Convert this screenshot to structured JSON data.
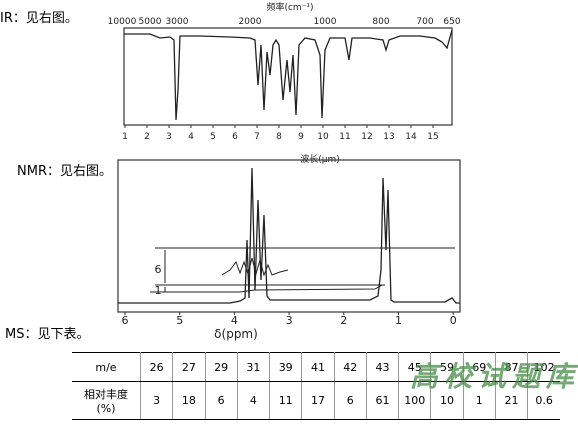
{
  "ir": {
    "label": "IR：见右图。",
    "top_title": "频率(cm⁻¹)",
    "top_ticks": [
      "10000",
      "5000",
      "3000",
      "2000",
      "1000",
      "800",
      "700",
      "650"
    ],
    "bottom_ticks": [
      1,
      2,
      3,
      4,
      5,
      6,
      7,
      8,
      9,
      10,
      11,
      12,
      13,
      14,
      15
    ],
    "bottom_title": "波长(μm)"
  },
  "nmr": {
    "label": "NMR：见右图。",
    "ticks": [
      6,
      5,
      4,
      3,
      2,
      1,
      0
    ],
    "x_title": "δ(ppm)",
    "integrals": [
      "6",
      "1"
    ]
  },
  "ms": {
    "label": "MS：见下表。",
    "table": {
      "header": [
        "m/e",
        "26",
        "27",
        "29",
        "31",
        "39",
        "41",
        "42",
        "43",
        "45",
        "59",
        "69",
        "87",
        "102"
      ],
      "row_label": [
        "相对丰度",
        "(%)"
      ],
      "row": [
        "3",
        "18",
        "6",
        "4",
        "11",
        "17",
        "6",
        "61",
        "100",
        "10",
        "1",
        "21",
        "0.6"
      ]
    }
  },
  "watermark": "高校试题库"
}
